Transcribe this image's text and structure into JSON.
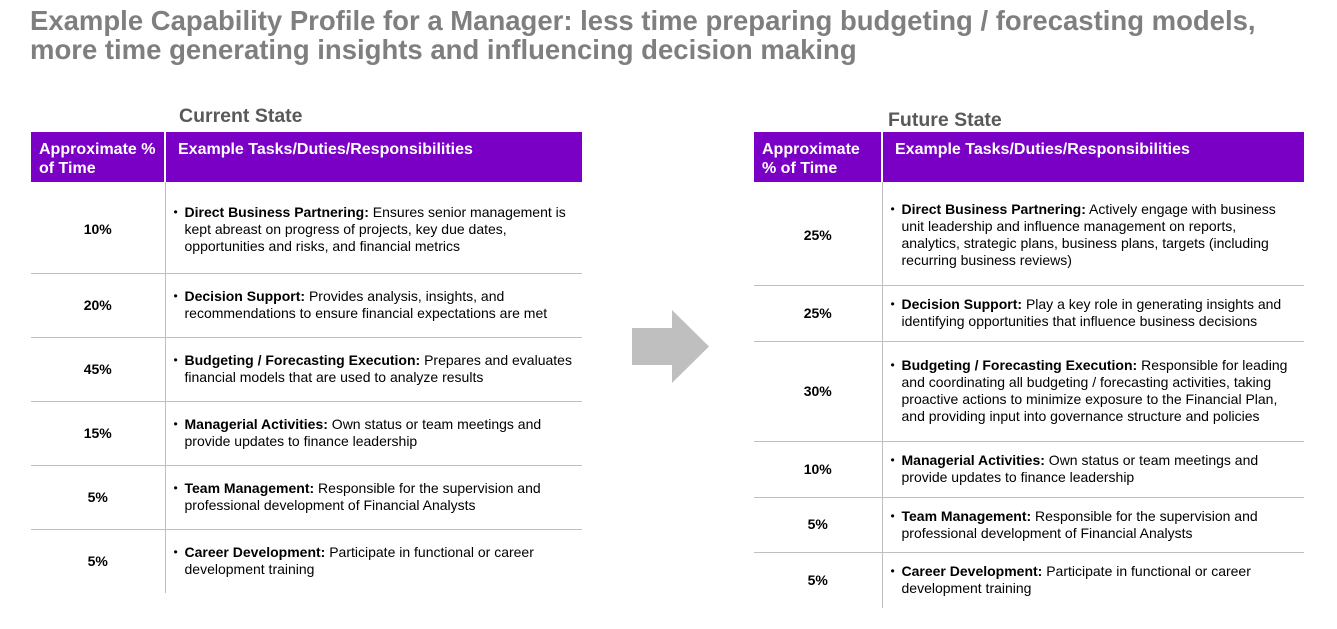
{
  "title": {
    "line1": "Example Capability Profile for a Manager: less time preparing budgeting / forecasting models,",
    "line2": "more time generating insights and influencing decision making"
  },
  "colors": {
    "header_bg": "#7b00c5",
    "title_text": "#7f7f7f",
    "arrow": "#bfbfbf"
  },
  "arrow_icon": "right-arrow-icon",
  "current": {
    "heading": "Current State",
    "col_pct": "Approximate % of Time",
    "col_tasks": "Example Tasks/Duties/Responsibilities",
    "rows": [
      {
        "pct": "10%",
        "bullet": "•",
        "label": "Direct Business Partnering:",
        "desc": " Ensures senior management is kept abreast on progress of projects, key due dates, opportunities and risks, and financial metrics"
      },
      {
        "pct": "20%",
        "bullet": "•",
        "label": "Decision Support:",
        "desc": " Provides analysis, insights, and recommendations to ensure financial expectations are met"
      },
      {
        "pct": "45%",
        "bullet": "•",
        "label": "Budgeting / Forecasting Execution:",
        "desc": " Prepares and evaluates financial models that are used to analyze results"
      },
      {
        "pct": "15%",
        "bullet": "•",
        "label": "Managerial Activities:",
        "desc": " Own status or team meetings and provide updates to finance leadership"
      },
      {
        "pct": "5%",
        "bullet": "•",
        "label": "Team Management:",
        "desc": " Responsible for the supervision and professional development of  Financial Analysts"
      },
      {
        "pct": "5%",
        "bullet": "•",
        "label": "Career Development:",
        "desc": " Participate in functional or career development training"
      }
    ]
  },
  "future": {
    "heading": "Future State",
    "col_pct": "Approximate % of Time",
    "col_tasks": "Example Tasks/Duties/Responsibilities",
    "rows": [
      {
        "pct": "25%",
        "bullet": "•",
        "label": "Direct Business Partnering:",
        "desc": " Actively engage with business unit leadership and influence management on reports, analytics, strategic plans, business plans, targets (including recurring business reviews)"
      },
      {
        "pct": "25%",
        "bullet": "•",
        "label": "Decision Support:",
        "desc": " Play a key role in generating insights and identifying opportunities that influence business decisions"
      },
      {
        "pct": "30%",
        "bullet": "•",
        "label": "Budgeting / Forecasting Execution:",
        "desc": " Responsible for leading and coordinating all budgeting / forecasting activities, taking proactive actions to minimize exposure to the Financial Plan, and providing input into governance structure and policies"
      },
      {
        "pct": "10%",
        "bullet": "•",
        "label": "Managerial Activities:",
        "desc": " Own status or team meetings and provide updates to finance leadership"
      },
      {
        "pct": "5%",
        "bullet": "•",
        "label": "Team Management:",
        "desc": " Responsible for the supervision and professional development of  Financial Analysts"
      },
      {
        "pct": "5%",
        "bullet": "•",
        "label": "Career Development:",
        "desc": " Participate in functional or career development training"
      }
    ]
  }
}
